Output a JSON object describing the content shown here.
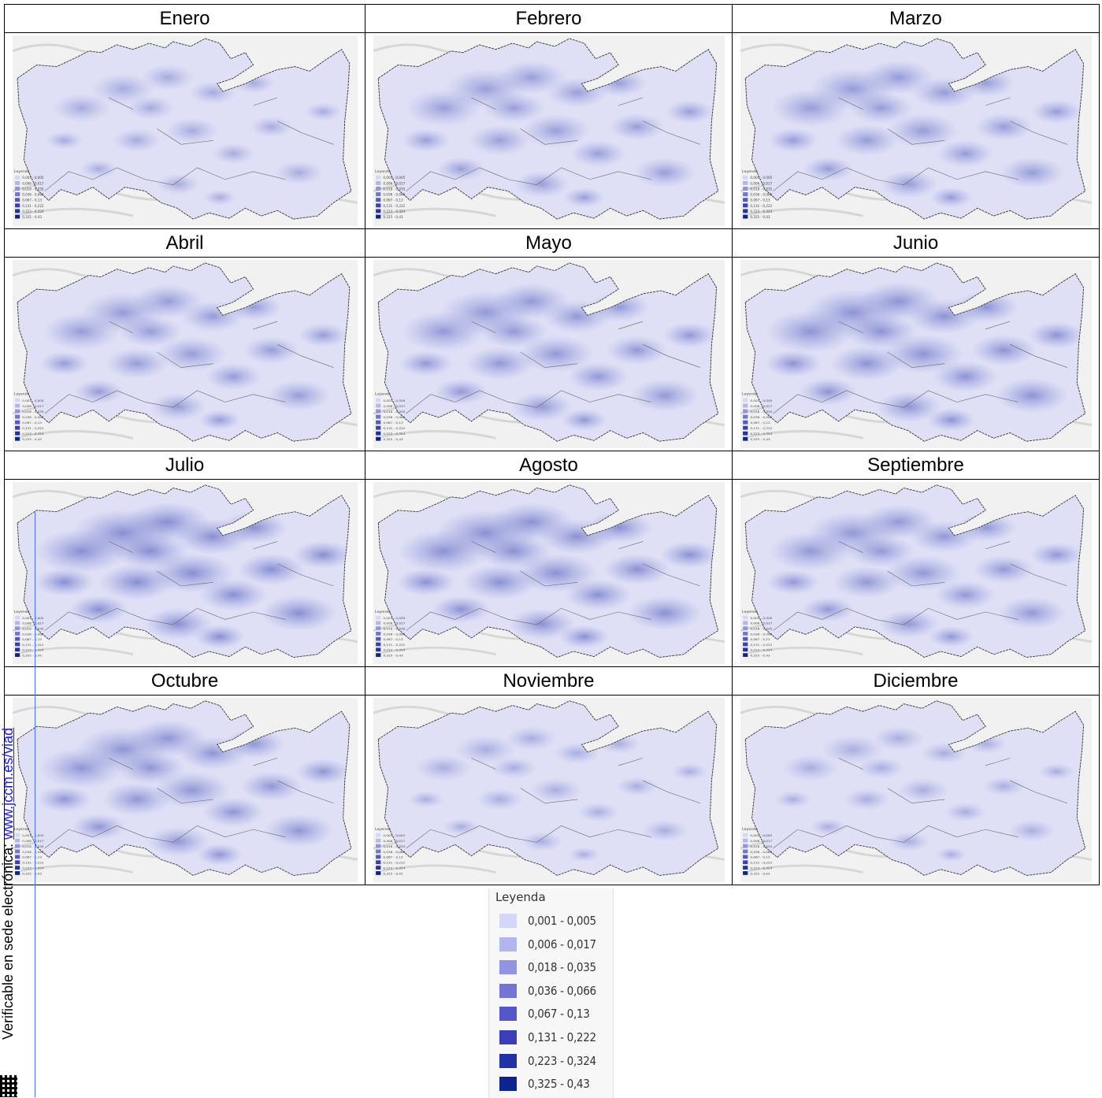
{
  "months": [
    {
      "name": "Enero",
      "intensity": 0.25
    },
    {
      "name": "Febrero",
      "intensity": 0.55
    },
    {
      "name": "Marzo",
      "intensity": 0.6
    },
    {
      "name": "Abril",
      "intensity": 0.6
    },
    {
      "name": "Mayo",
      "intensity": 0.7
    },
    {
      "name": "Junio",
      "intensity": 0.8
    },
    {
      "name": "Julio",
      "intensity": 0.9
    },
    {
      "name": "Agosto",
      "intensity": 0.85
    },
    {
      "name": "Septiembre",
      "intensity": 0.7
    },
    {
      "name": "Octubre",
      "intensity": 0.75
    },
    {
      "name": "Noviembre",
      "intensity": 0.2
    },
    {
      "name": "Diciembre",
      "intensity": 0.2
    }
  ],
  "legend": {
    "title": "Leyenda",
    "classes": [
      {
        "label": "0,001 - 0,005",
        "color": "#d5d6f9"
      },
      {
        "label": "0,006 - 0,017",
        "color": "#b3b5ef"
      },
      {
        "label": "0,018 - 0,035",
        "color": "#9193e3"
      },
      {
        "label": "0,036 - 0,066",
        "color": "#7274d6"
      },
      {
        "label": "0,067 - 0,13",
        "color": "#5357c9"
      },
      {
        "label": "0,131 - 0,222",
        "color": "#3a3fb8"
      },
      {
        "label": "0,223 - 0,324",
        "color": "#2430a6"
      },
      {
        "label": "0,325 - 0,43",
        "color": "#0c2490"
      }
    ]
  },
  "side_text": {
    "prefix": "Verificable en sede electrónica: ",
    "link": "www.jccm.es/viad"
  }
}
